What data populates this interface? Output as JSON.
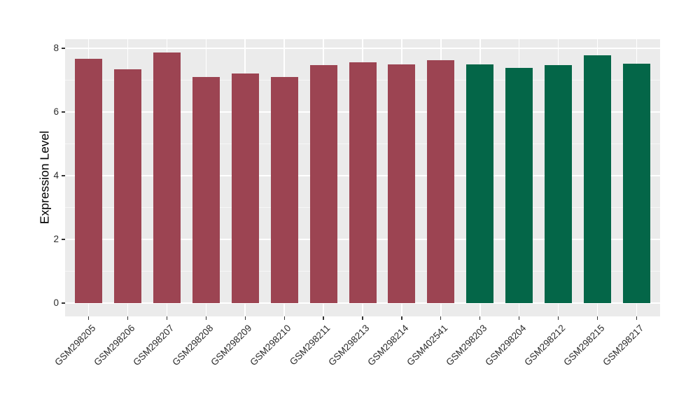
{
  "page": {
    "background_color": "#ffffff"
  },
  "chart_data": {
    "type": "bar",
    "title": "",
    "xlabel": "",
    "ylabel": "Expression Level",
    "ylim": [
      0,
      8
    ],
    "yticks": [
      0,
      2,
      4,
      6,
      8
    ],
    "grid": true,
    "legend_position": "none",
    "panel_background": "#ebebeb",
    "grid_major_color": "#ffffff",
    "grid_minor_color": "#f7f7f7",
    "tick_mark_color": "#333333",
    "axis_text_color": "#2b2b2b",
    "bar_width_fraction": 0.7,
    "categories": [
      "GSM298205",
      "GSM298206",
      "GSM298207",
      "GSM298208",
      "GSM298209",
      "GSM298210",
      "GSM298211",
      "GSM298213",
      "GSM298214",
      "GSM402541",
      "GSM298203",
      "GSM298204",
      "GSM298212",
      "GSM298215",
      "GSM298217"
    ],
    "values": [
      7.67,
      7.34,
      7.87,
      7.1,
      7.21,
      7.1,
      7.47,
      7.56,
      7.49,
      7.62,
      7.49,
      7.38,
      7.48,
      7.78,
      7.52
    ],
    "bar_colors": [
      "#9c4452",
      "#9c4452",
      "#9c4452",
      "#9c4452",
      "#9c4452",
      "#9c4452",
      "#9c4452",
      "#9c4452",
      "#9c4452",
      "#9c4452",
      "#046648",
      "#046648",
      "#046648",
      "#046648",
      "#046648"
    ],
    "palette": {
      "maroon": "#9c4452",
      "green": "#046648"
    }
  }
}
